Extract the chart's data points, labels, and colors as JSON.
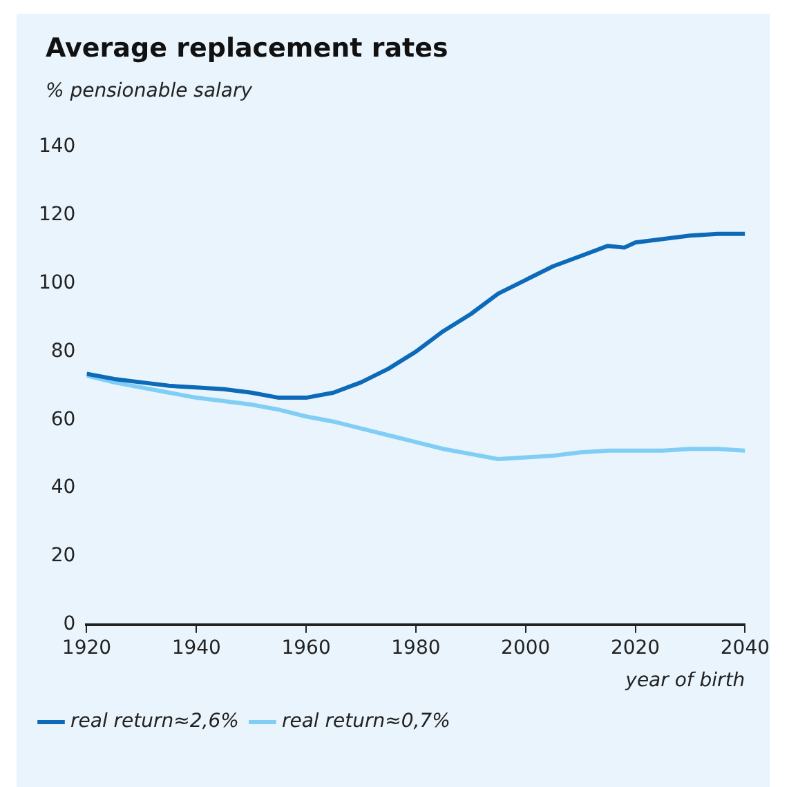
{
  "chart_data": {
    "type": "line",
    "title": "Average replacement rates",
    "ylabel": "% pensionable salary",
    "xlabel": "year of birth",
    "x": [
      1920,
      1925,
      1930,
      1935,
      1940,
      1945,
      1950,
      1955,
      1960,
      1965,
      1970,
      1975,
      1980,
      1985,
      1990,
      1995,
      2000,
      2005,
      2010,
      2015,
      2018,
      2020,
      2025,
      2030,
      2035,
      2040
    ],
    "series": [
      {
        "name": "real return≈2,6%",
        "color": "#0d6ab8",
        "values": [
          73.5,
          72,
          71,
          70,
          69.5,
          69,
          68,
          66.5,
          66.5,
          68,
          71,
          75,
          80,
          86,
          91,
          97,
          101,
          105,
          108,
          111,
          110.5,
          112,
          113,
          114,
          114.5,
          114.5
        ]
      },
      {
        "name": "real return≈0,7%",
        "color": "#80cdf5",
        "values": [
          73,
          71,
          69.5,
          68,
          66.5,
          65.5,
          64.5,
          63,
          61,
          59.5,
          57.5,
          55.5,
          53.5,
          51.5,
          50,
          48.5,
          49,
          49.5,
          50.5,
          51,
          51,
          51,
          51,
          51.5,
          51.5,
          51
        ]
      }
    ],
    "xlim": [
      1920,
      2040
    ],
    "xticks": [
      1920,
      1940,
      1960,
      1980,
      2000,
      2020,
      2040
    ],
    "ylim": [
      0,
      140
    ],
    "yticks": [
      0,
      20,
      40,
      60,
      80,
      100,
      120,
      140
    ],
    "grid": false,
    "legend": "bottom left",
    "marker": "none",
    "line_style": "solid"
  }
}
